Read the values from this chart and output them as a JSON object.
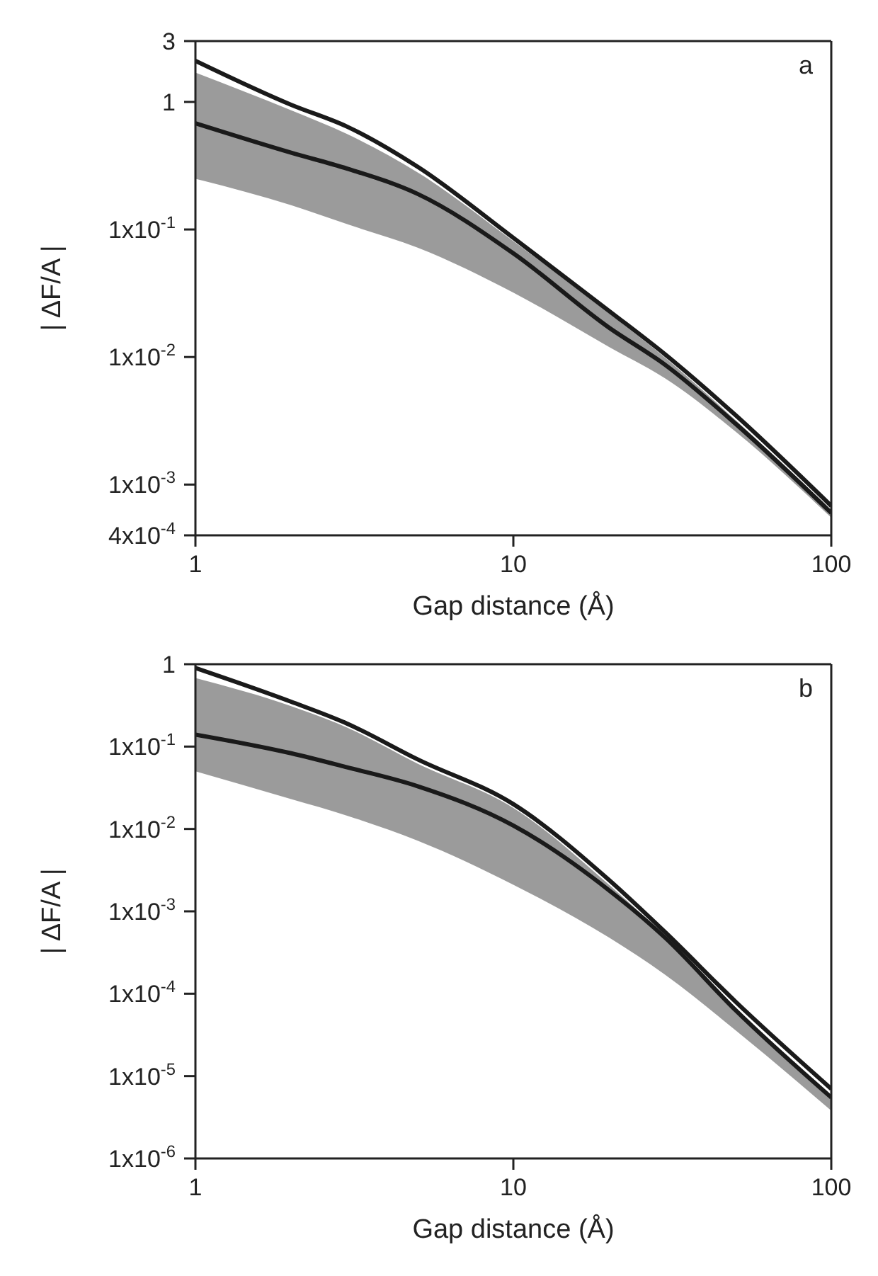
{
  "chart_data": [
    {
      "type": "line",
      "annotations": [
        "a"
      ],
      "xlabel": "Gap distance (Å)",
      "ylabel": "| ΔF/A |",
      "log": "xy",
      "line_style": "solid",
      "x": [
        1,
        2,
        3,
        5,
        10,
        20,
        30,
        50,
        100
      ],
      "xlim": [
        1,
        100
      ],
      "xticks": [
        1,
        10,
        100
      ],
      "ylim": [
        0.0004,
        3
      ],
      "yticks": [
        {
          "value": 0.0004,
          "label": "4x10$^{-4}$"
        },
        {
          "value": 0.001,
          "label": "1x10$^{-3}$"
        },
        {
          "value": 0.01,
          "label": "1x10$^{-2}$"
        },
        {
          "value": 0.1,
          "label": "1x10$^{-1}$"
        },
        {
          "value": 1,
          "label": "1"
        },
        {
          "value": 3,
          "label": "3"
        }
      ],
      "series": [
        {
          "color": "#1a1a1a",
          "values": [
            2.1,
            0.95,
            0.64,
            0.31,
            0.086,
            0.023,
            0.0105,
            0.0035,
            0.00068
          ]
        },
        {
          "color": "#1a1a1a",
          "values": [
            0.68,
            0.4,
            0.3,
            0.19,
            0.065,
            0.017,
            0.0087,
            0.003,
            0.0006
          ],
          "lower": [
            0.25,
            0.155,
            0.11,
            0.072,
            0.032,
            0.012,
            0.0068,
            0.0026,
            0.00055
          ],
          "upper": [
            1.7,
            0.86,
            0.56,
            0.28,
            0.081,
            0.022,
            0.0099,
            0.0032,
            0.00063
          ]
        }
      ]
    },
    {
      "type": "line",
      "annotations": [
        "b"
      ],
      "xlabel": "Gap distance (Å)",
      "ylabel": "| ΔF/A |",
      "log": "xy",
      "line_style": "solid",
      "x": [
        1,
        2,
        3,
        5,
        10,
        20,
        30,
        50,
        100
      ],
      "xlim": [
        1,
        100
      ],
      "xticks": [
        1,
        10,
        100
      ],
      "ylim": [
        1e-06,
        1
      ],
      "yticks": [
        {
          "value": 1e-06,
          "label": "1x10$^{-6}$"
        },
        {
          "value": 1e-05,
          "label": "1x10$^{-5}$"
        },
        {
          "value": 0.0001,
          "label": "1x10$^{-4}$"
        },
        {
          "value": 0.001,
          "label": "1x10$^{-3}$"
        },
        {
          "value": 0.01,
          "label": "1x10$^{-2}$"
        },
        {
          "value": 0.1,
          "label": "1x10$^{-1}$"
        },
        {
          "value": 1,
          "label": "1"
        }
      ],
      "series": [
        {
          "color": "#1a1a1a",
          "values": [
            0.9,
            0.35,
            0.19,
            0.07,
            0.02,
            0.0024,
            0.00056,
            8e-05,
            7e-06
          ]
        },
        {
          "color": "#1a1a1a",
          "values": [
            0.14,
            0.083,
            0.056,
            0.033,
            0.011,
            0.0018,
            0.00048,
            6.3e-05,
            5.5e-06
          ],
          "lower": [
            0.05,
            0.023,
            0.0145,
            0.0072,
            0.0021,
            0.00048,
            0.00017,
            3.6e-05,
            3.8e-06
          ],
          "upper": [
            0.68,
            0.31,
            0.17,
            0.062,
            0.018,
            0.0021,
            0.0005,
            6.8e-05,
            5.6e-06
          ]
        }
      ]
    }
  ]
}
